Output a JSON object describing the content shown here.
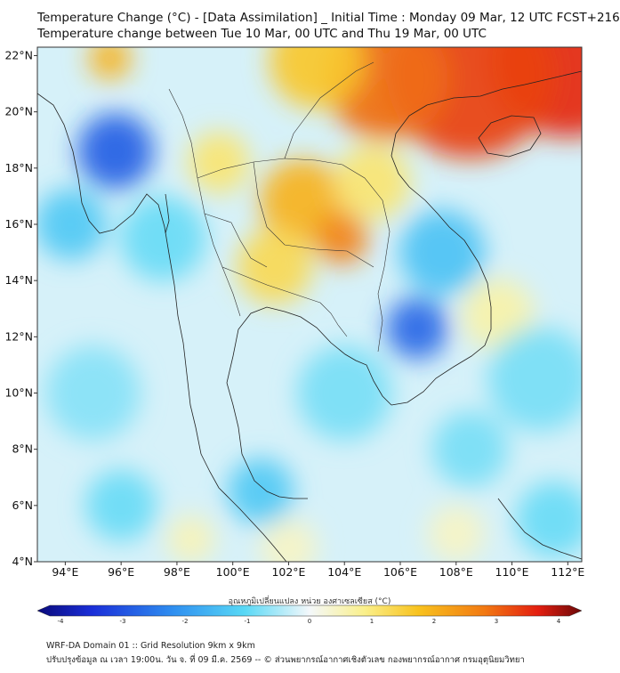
{
  "header": {
    "title_line1": "Temperature Change (°C) - [Data Assimilation] _ Initial Time : Monday 09 Mar, 12 UTC FCST+216",
    "title_line2": "Temperature change between Tue 10 Mar, 00 UTC and Thu 19 Mar, 00 UTC"
  },
  "map": {
    "lon_ticks": [
      "94°E",
      "96°E",
      "98°E",
      "100°E",
      "102°E",
      "104°E",
      "106°E",
      "108°E",
      "110°E",
      "112°E"
    ],
    "lat_ticks": [
      "22°N",
      "20°N",
      "18°N",
      "16°N",
      "14°N",
      "12°N",
      "10°N",
      "8°N",
      "6°N",
      "4°N"
    ],
    "extent": {
      "lon": [
        93,
        112.5
      ],
      "lat": [
        4,
        22.3
      ]
    },
    "features": [
      {
        "lon": 112.0,
        "lat": 21.8,
        "value": 3.2,
        "r": 3.2
      },
      {
        "lon": 108.5,
        "lat": 21.3,
        "value": 3.0,
        "r": 3.5
      },
      {
        "lon": 105.5,
        "lat": 21.2,
        "value": 2.6,
        "r": 2.6
      },
      {
        "lon": 103.0,
        "lat": 21.8,
        "value": 1.5,
        "r": 2.0
      },
      {
        "lon": 95.6,
        "lat": 21.9,
        "value": 1.8,
        "r": 0.9
      },
      {
        "lon": 102.5,
        "lat": 16.8,
        "value": 1.8,
        "r": 1.8
      },
      {
        "lon": 103.9,
        "lat": 15.5,
        "value": 2.4,
        "r": 1.1
      },
      {
        "lon": 101.5,
        "lat": 14.5,
        "value": 1.2,
        "r": 1.6
      },
      {
        "lon": 99.5,
        "lat": 18.2,
        "value": 1.0,
        "r": 1.3
      },
      {
        "lon": 105.0,
        "lat": 17.5,
        "value": 1.0,
        "r": 1.6
      },
      {
        "lon": 109.5,
        "lat": 12.8,
        "value": 0.6,
        "r": 1.5
      },
      {
        "lon": 95.8,
        "lat": 18.6,
        "value": -2.6,
        "r": 1.6
      },
      {
        "lon": 94.2,
        "lat": 16.0,
        "value": -1.2,
        "r": 1.5
      },
      {
        "lon": 106.6,
        "lat": 12.3,
        "value": -2.5,
        "r": 1.3
      },
      {
        "lon": 107.5,
        "lat": 15.0,
        "value": -1.3,
        "r": 1.8
      },
      {
        "lon": 97.5,
        "lat": 15.5,
        "value": -0.9,
        "r": 1.8
      },
      {
        "lon": 111.0,
        "lat": 10.5,
        "value": -0.8,
        "r": 2.2
      },
      {
        "lon": 95.0,
        "lat": 10.0,
        "value": -0.7,
        "r": 2.0
      },
      {
        "lon": 104.0,
        "lat": 10.0,
        "value": -0.8,
        "r": 2.0
      },
      {
        "lon": 101.0,
        "lat": 6.5,
        "value": -1.2,
        "r": 1.4
      },
      {
        "lon": 96.0,
        "lat": 6.0,
        "value": -0.9,
        "r": 1.5
      },
      {
        "lon": 108.5,
        "lat": 8.0,
        "value": -0.8,
        "r": 1.6
      },
      {
        "lon": 111.5,
        "lat": 5.5,
        "value": -0.9,
        "r": 1.6
      },
      {
        "lon": 98.5,
        "lat": 4.8,
        "value": 0.5,
        "r": 1.0
      },
      {
        "lon": 102.0,
        "lat": 4.5,
        "value": 0.4,
        "r": 1.2
      },
      {
        "lon": 108.0,
        "lat": 5.0,
        "value": 0.4,
        "r": 1.2
      }
    ]
  },
  "colorbar": {
    "label": "อุณหภูมิเปลี่ยนแปลง หน่วย องศาเซลเซียส (°C)",
    "ticks": [
      "-4",
      "-3",
      "-2",
      "-1",
      "0",
      "1",
      "2",
      "3",
      "4"
    ],
    "range": [
      -4,
      4
    ]
  },
  "footer": {
    "line1": "WRF-DA Domain 01 :: Grid Resolution 9km x 9km",
    "line2": "ปรับปรุงข้อมูล ณ เวลา 19:00น. วัน จ. ที่ 09 มี.ค. 2569 -- © ส่วนพยากรณ์อากาศเชิงตัวเลข กองพยากรณ์อากาศ กรมอุตุนิยมวิทยา"
  }
}
